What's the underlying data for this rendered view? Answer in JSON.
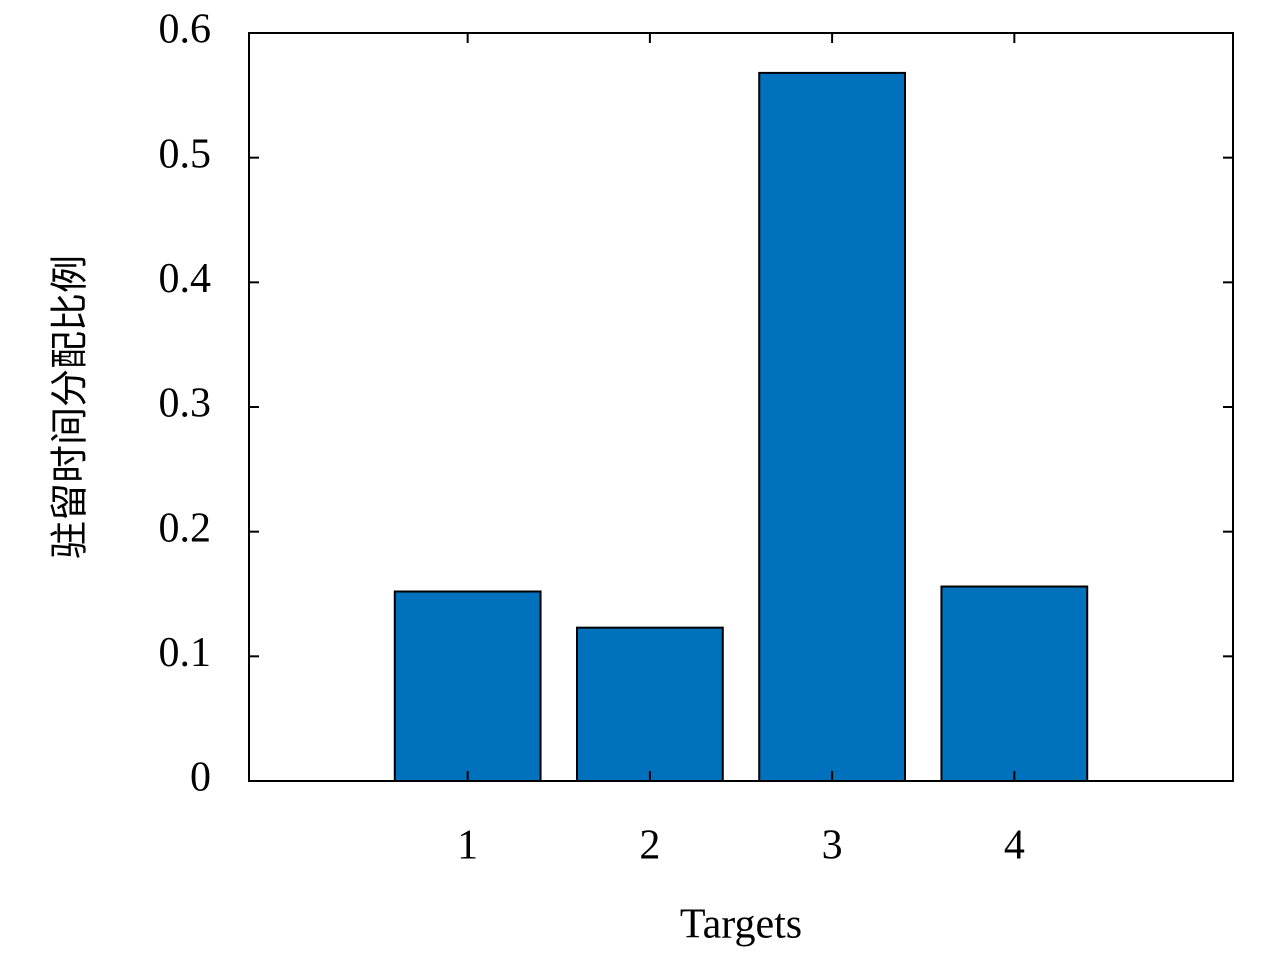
{
  "chart_data": {
    "type": "bar",
    "x": [
      1,
      2,
      3,
      4
    ],
    "values": [
      0.152,
      0.123,
      0.568,
      0.156
    ],
    "color": "#0072bd",
    "xlabel": "Targets",
    "ylabel": "驻留时间分配比例",
    "xlim": [
      -0.2,
      5.2
    ],
    "xticks": [
      1,
      2,
      3,
      4
    ],
    "ylim": [
      0,
      0.6
    ],
    "yticks": [
      0,
      0.1,
      0.2,
      0.3,
      0.4,
      0.5,
      0.6
    ],
    "grid": false
  }
}
